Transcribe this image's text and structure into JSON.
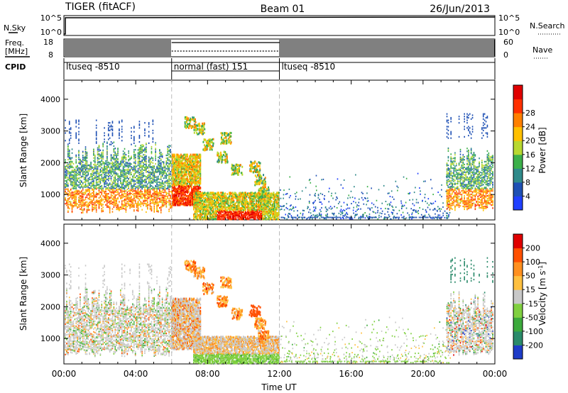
{
  "header": {
    "title": "TIGER (fitACF)",
    "beam": "Beam 01",
    "date": "26/Jun/2013"
  },
  "aux_panels": {
    "nsky": {
      "label": "N.Sky",
      "ticks": [
        "10^5",
        "10^0"
      ]
    },
    "nsearch": {
      "label": "N.Search",
      "ticks": [
        "10^5",
        "10^0"
      ]
    },
    "freq": {
      "label_line1": "Freq.",
      "label_line2": "[MHz]",
      "ticks": [
        "18",
        "8"
      ]
    },
    "nave": {
      "label": "Nave",
      "ticks": [
        "60",
        "0"
      ]
    },
    "cpid": {
      "label": "CPID",
      "segments": [
        {
          "name": "ltuseq -8510",
          "start_hour": 0,
          "end_hour": 6
        },
        {
          "name": "normal (fast) 151",
          "start_hour": 6,
          "end_hour": 12
        },
        {
          "name": "ltuseq -8510",
          "start_hour": 12,
          "end_hour": 24
        }
      ]
    }
  },
  "chart_data": [
    {
      "type": "heatmap",
      "name": "power-panel",
      "ylabel": "Slant Range [km]",
      "yticks": [
        "1000",
        "2000",
        "3000",
        "4000"
      ],
      "ylim": [
        200,
        4600
      ],
      "xlim": [
        0,
        24
      ],
      "colorbar": {
        "label": "Power [dB]",
        "ticks": [
          "4",
          "8",
          "12",
          "16",
          "20",
          "24",
          "28"
        ],
        "colors": [
          "#2040ff",
          "#1e50b4",
          "#2f8a8a",
          "#3cb04a",
          "#b8d830",
          "#ffc000",
          "#ff8000",
          "#ff3000",
          "#e00000"
        ]
      },
      "regions": [
        {
          "x": [
            0,
            6
          ],
          "y": [
            500,
            2500
          ],
          "level": 0.45,
          "note": "dense vertical streaks"
        },
        {
          "x": [
            6,
            7.5
          ],
          "y": [
            700,
            2200
          ],
          "level": 0.85
        },
        {
          "x": [
            7.5,
            11.5
          ],
          "y": [
            250,
            900
          ],
          "level": 0.6
        },
        {
          "x": [
            9,
            11
          ],
          "y": [
            250,
            500
          ],
          "level": 0.9
        },
        {
          "x": [
            21.5,
            24
          ],
          "y": [
            600,
            2300
          ],
          "level": 0.55
        }
      ]
    },
    {
      "type": "heatmap",
      "name": "velocity-panel",
      "ylabel": "Slant Range [km]",
      "yticks": [
        "1000",
        "2000",
        "3000",
        "4000"
      ],
      "ylim": [
        200,
        4600
      ],
      "xlim": [
        0,
        24
      ],
      "xticks": [
        "00:00",
        "04:00",
        "08:00",
        "12:00",
        "16:00",
        "20:00",
        "00:00"
      ],
      "xlabel": "Time UT",
      "colorbar": {
        "label": "Velocity [m s^-1]",
        "ticks": [
          "200",
          "100",
          "50",
          "15",
          "-15",
          "-50",
          "-100",
          "-200"
        ],
        "colors": [
          "#1e3cc8",
          "#2a8a6a",
          "#3caa3c",
          "#80d040",
          "#c8c8c8",
          "#ffc040",
          "#ff9020",
          "#ff5000",
          "#e00000"
        ]
      }
    }
  ]
}
